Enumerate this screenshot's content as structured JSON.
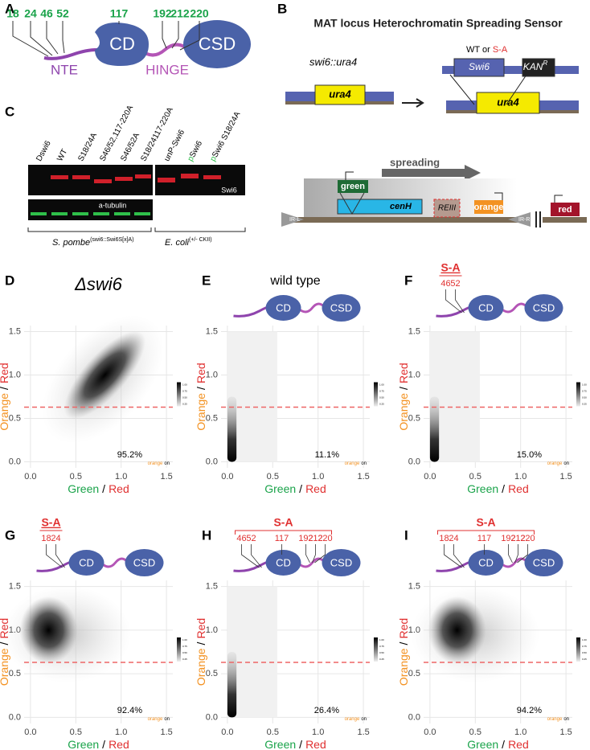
{
  "panel_labels": [
    "A",
    "B",
    "C",
    "D",
    "E",
    "F",
    "G",
    "H",
    "I"
  ],
  "panel_a": {
    "sites": [
      "18",
      "24",
      "46",
      "52",
      "117",
      "192",
      "212",
      "220"
    ],
    "nte": "NTE",
    "cd": "CD",
    "hinge": "HINGE",
    "csd": "CSD"
  },
  "panel_b": {
    "title": "MAT locus Heterochromatin Spreading Sensor",
    "left_label": "swi6::ura4",
    "wt_or": "WT or",
    "sa": "S-A",
    "swi6": "Swi6",
    "kan": "KAN",
    "kan_sup": "R",
    "ura4": "ura4",
    "spreading": "spreading",
    "green": "green",
    "cenh": "cenH",
    "reiii": "REIII",
    "orange": "orange",
    "irl": "IR-L",
    "irr": "IR-R",
    "red": "red"
  },
  "panel_c": {
    "lanes": [
      "Dswi6",
      "WT",
      "S18/24A",
      "S46/52,117-220A",
      "S46/52A",
      "S18/24117-220A",
      "unP-Swi6",
      "pSwi6",
      "pSwi6 S18/24A"
    ],
    "swi6": "Swi6",
    "tubulin": "a-tubulin",
    "spombe": "S. pombe",
    "spombe_sup": "(swi6::Swi6S[x]A)",
    "ecoli": "E. coli",
    "ecoli_sup": "(+/- CKII)"
  },
  "cartoon": {
    "cd": "CD",
    "csd": "CSD",
    "sa": "S-A"
  },
  "plots": [
    {
      "title": "Δswi6",
      "percent": "95.2%"
    },
    {
      "title": "wild type",
      "percent": "11.1%"
    },
    {
      "sites": [
        "46",
        "52"
      ],
      "percent": "15.0%"
    },
    {
      "sites": [
        "18",
        "24"
      ],
      "percent": "92.4%"
    },
    {
      "sites": [
        "46",
        "52",
        "117",
        "192",
        "212",
        "220"
      ],
      "percent": "26.4%"
    },
    {
      "sites": [
        "18",
        "24",
        "117",
        "192",
        "212",
        "220"
      ],
      "percent": "94.2%"
    }
  ],
  "axes": {
    "x_green": "Green",
    "slash": "/",
    "red": "Red",
    "y_orange": "Orange",
    "xlim": [
      -0.07,
      1.57
    ],
    "ylim": [
      -0.07,
      1.57
    ],
    "ticks": [
      {
        "value": 0,
        "label": "0.0"
      },
      {
        "value": 0.5,
        "label": "0.5"
      },
      {
        "value": 1,
        "label": "1.0"
      },
      {
        "value": 1.5,
        "label": "1.5"
      }
    ],
    "threshold": 0.63,
    "note_orange": "orange",
    "note_on": "on",
    "colorbar_ticks": [
      "1.00",
      "0.75",
      "0.50",
      "0.25"
    ]
  }
}
